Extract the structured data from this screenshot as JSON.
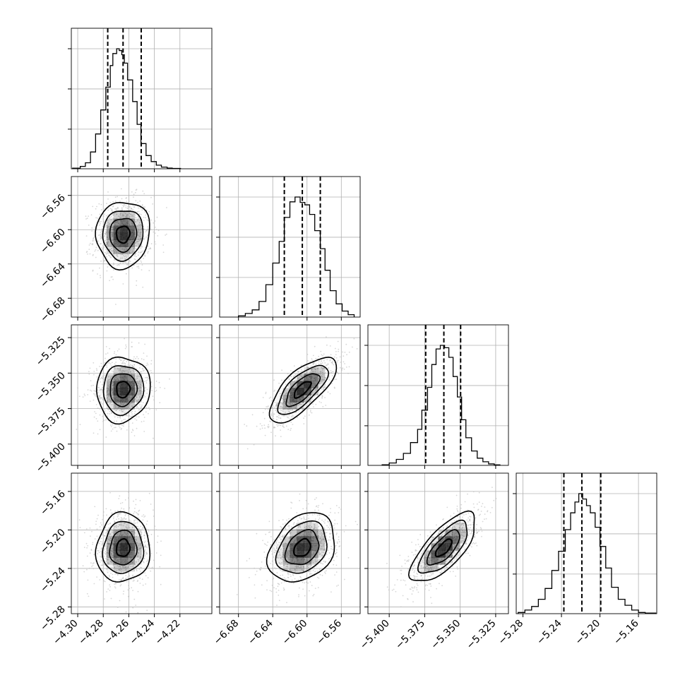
{
  "chart_data": {
    "type": "corner",
    "parameters": [
      {
        "lim": [
          -4.305,
          -4.195
        ],
        "ticks": [
          -4.3,
          -4.28,
          -4.26,
          -4.24,
          -4.22
        ],
        "tick_labels": [
          "−4.30",
          "−4.28",
          "−4.26",
          "−4.24",
          "−4.22"
        ],
        "quantiles": [
          -4.2765,
          -4.2645,
          -4.2503
        ],
        "hist_x": [
          -4.304,
          -4.298,
          -4.294,
          -4.29,
          -4.286,
          -4.282,
          -4.278,
          -4.2745,
          -4.2725,
          -4.2695,
          -4.2675,
          -4.2655,
          -4.2635,
          -4.261,
          -4.257,
          -4.2535,
          -4.2505,
          -4.2465,
          -4.2425,
          -4.2385,
          -4.2345,
          -4.23,
          -4.226,
          -4.2195
        ],
        "hist_y": [
          0.005,
          0.02,
          0.05,
          0.14,
          0.29,
          0.49,
          0.68,
          0.86,
          0.96,
          1.0,
          0.985,
          0.95,
          0.88,
          0.74,
          0.56,
          0.37,
          0.21,
          0.11,
          0.06,
          0.03,
          0.014,
          0.006,
          0.0025
        ]
      },
      {
        "lim": [
          -6.702,
          -6.538
        ],
        "ticks": [
          -6.68,
          -6.64,
          -6.6,
          -6.56
        ],
        "tick_labels": [
          "−6.68",
          "−6.64",
          "−6.60",
          "−6.56"
        ],
        "quantiles": [
          -6.6265,
          -6.6055,
          -6.5845
        ],
        "hist_x": [
          -6.68,
          -6.672,
          -6.664,
          -6.656,
          -6.648,
          -6.64,
          -6.6325,
          -6.6265,
          -6.62,
          -6.614,
          -6.608,
          -6.6025,
          -6.597,
          -6.591,
          -6.5845,
          -6.579,
          -6.573,
          -6.566,
          -6.559,
          -6.552,
          -6.545
        ],
        "hist_y": [
          0.01,
          0.03,
          0.06,
          0.13,
          0.27,
          0.45,
          0.63,
          0.83,
          0.96,
          1.0,
          0.955,
          0.935,
          0.855,
          0.72,
          0.57,
          0.39,
          0.22,
          0.11,
          0.05,
          0.02
        ]
      },
      {
        "lim": [
          -5.415,
          -5.316
        ],
        "ticks": [
          -5.4,
          -5.375,
          -5.35,
          -5.325
        ],
        "tick_labels": [
          "−5.400",
          "−5.375",
          "−5.350",
          "−5.325"
        ],
        "quantiles": [
          -5.3743,
          -5.3615,
          -5.3497
        ],
        "hist_x": [
          -5.405,
          -5.4,
          -5.395,
          -5.39,
          -5.385,
          -5.38,
          -5.377,
          -5.373,
          -5.37,
          -5.367,
          -5.364,
          -5.361,
          -5.358,
          -5.355,
          -5.352,
          -5.349,
          -5.346,
          -5.342,
          -5.338,
          -5.334,
          -5.33,
          -5.326,
          -5.322
        ],
        "hist_y": [
          0.005,
          0.02,
          0.05,
          0.1,
          0.19,
          0.3,
          0.46,
          0.65,
          0.84,
          0.97,
          1.0,
          0.98,
          0.9,
          0.74,
          0.57,
          0.38,
          0.23,
          0.12,
          0.06,
          0.03,
          0.012,
          0.004
        ]
      },
      {
        "lim": [
          -5.287,
          -5.141
        ],
        "ticks": [
          -5.28,
          -5.24,
          -5.2,
          -5.16
        ],
        "tick_labels": [
          "−5.28",
          "−5.24",
          "−5.20",
          "−5.16"
        ],
        "quantiles": [
          -5.2375,
          -5.2188,
          -5.1992
        ],
        "hist_x": [
          -5.285,
          -5.278,
          -5.271,
          -5.264,
          -5.257,
          -5.25,
          -5.243,
          -5.236,
          -5.2305,
          -5.226,
          -5.222,
          -5.218,
          -5.214,
          -5.21,
          -5.205,
          -5.2,
          -5.194,
          -5.188,
          -5.181,
          -5.174,
          -5.167,
          -5.16,
          -5.153,
          -5.142
        ],
        "hist_y": [
          0.01,
          0.03,
          0.06,
          0.12,
          0.21,
          0.36,
          0.52,
          0.7,
          0.84,
          0.93,
          1.0,
          0.955,
          0.9,
          0.84,
          0.72,
          0.56,
          0.38,
          0.22,
          0.12,
          0.07,
          0.03,
          0.01,
          0.005
        ]
      }
    ],
    "density_pairs": [
      {
        "row": 1,
        "col": 0,
        "mean": [
          -4.2645,
          -6.6055
        ],
        "sd": [
          0.0105,
          0.0195
        ],
        "rho": 0.05
      },
      {
        "row": 2,
        "col": 0,
        "mean": [
          -4.2645,
          -5.3615
        ],
        "sd": [
          0.0105,
          0.0115
        ],
        "rho": 0.05
      },
      {
        "row": 2,
        "col": 1,
        "mean": [
          -6.6055,
          -5.3615
        ],
        "sd": [
          0.0195,
          0.0115
        ],
        "rho": 0.72
      },
      {
        "row": 3,
        "col": 0,
        "mean": [
          -4.2645,
          -5.2188
        ],
        "sd": [
          0.0105,
          0.018
        ],
        "rho": 0.05
      },
      {
        "row": 3,
        "col": 1,
        "mean": [
          -6.6055,
          -5.2188
        ],
        "sd": [
          0.0195,
          0.018
        ],
        "rho": 0.3
      },
      {
        "row": 3,
        "col": 2,
        "mean": [
          -5.3615,
          -5.2188
        ],
        "sd": [
          0.0115,
          0.018
        ],
        "rho": 0.72
      }
    ],
    "contour_levels_sigma": [
      0.5,
      1.0,
      1.5,
      2.0
    ],
    "grid": true,
    "colors": {
      "line": "#000000",
      "grid": "#b0b0b0",
      "points": "#bdbdbd",
      "density": "#000000"
    }
  }
}
